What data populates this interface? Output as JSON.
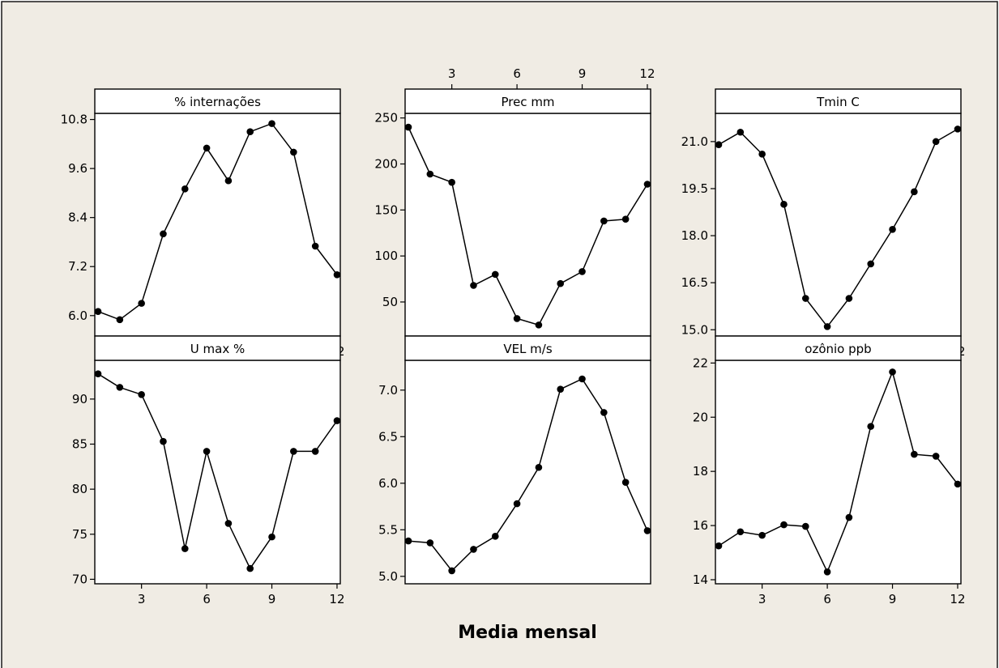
{
  "chart_data": {
    "type": "line",
    "xlabel": "Media mensal",
    "x": [
      1,
      2,
      3,
      4,
      5,
      6,
      7,
      8,
      9,
      10,
      11,
      12
    ],
    "xticks": [
      3,
      6,
      9,
      12
    ],
    "xlim": [
      0.85,
      12.15
    ],
    "panels": [
      {
        "title": "% internações",
        "values": [
          6.1,
          5.9,
          6.3,
          8.0,
          9.1,
          10.1,
          9.3,
          10.5,
          10.7,
          10.0,
          7.7,
          7.0
        ],
        "ylim": [
          5.5,
          10.95
        ],
        "yticks": [
          6.0,
          7.2,
          8.4,
          9.6,
          10.8
        ],
        "ytick_labels": [
          "6.0",
          "7.2",
          "8.4",
          "9.6",
          "10.8"
        ]
      },
      {
        "title": "Prec mm",
        "values": [
          240,
          189,
          180,
          68,
          80,
          32,
          25,
          70,
          83,
          138,
          140,
          178
        ],
        "ylim": [
          13,
          255
        ],
        "yticks": [
          50,
          100,
          150,
          200,
          250
        ],
        "ytick_labels": [
          "50",
          "100",
          "150",
          "200",
          "250"
        ]
      },
      {
        "title": "Tmin C",
        "values": [
          20.9,
          21.3,
          20.6,
          19.0,
          16.0,
          15.1,
          16.0,
          17.1,
          18.2,
          19.4,
          21.0,
          21.4
        ],
        "ylim": [
          14.8,
          21.9
        ],
        "yticks": [
          15.0,
          16.5,
          18.0,
          19.5,
          21.0
        ],
        "ytick_labels": [
          "15.0",
          "16.5",
          "18.0",
          "19.5",
          "21.0"
        ]
      },
      {
        "title": "U max %",
        "values": [
          92.8,
          91.3,
          90.5,
          85.3,
          73.4,
          84.2,
          76.2,
          71.2,
          74.7,
          84.2,
          84.2,
          87.6
        ],
        "ylim": [
          69.5,
          94.3
        ],
        "yticks": [
          70,
          75,
          80,
          85,
          90
        ],
        "ytick_labels": [
          "70",
          "75",
          "80",
          "85",
          "90"
        ]
      },
      {
        "title": "VEL m/s",
        "values": [
          5.38,
          5.36,
          5.06,
          5.29,
          5.43,
          5.78,
          6.17,
          7.01,
          7.12,
          6.76,
          6.01,
          5.49
        ],
        "ylim": [
          4.92,
          7.32
        ],
        "yticks": [
          5.0,
          5.5,
          6.0,
          6.5,
          7.0
        ],
        "ytick_labels": [
          "5.0",
          "5.5",
          "6.0",
          "6.5",
          "7.0"
        ]
      },
      {
        "title": "ozônio ppb",
        "values": [
          15.25,
          15.77,
          15.64,
          16.03,
          15.97,
          14.29,
          16.3,
          19.66,
          21.67,
          18.63,
          18.56,
          17.53
        ],
        "ylim": [
          13.85,
          22.1
        ],
        "yticks": [
          14,
          16,
          18,
          20,
          22
        ],
        "ytick_labels": [
          "14",
          "16",
          "18",
          "20",
          "22"
        ]
      }
    ]
  }
}
